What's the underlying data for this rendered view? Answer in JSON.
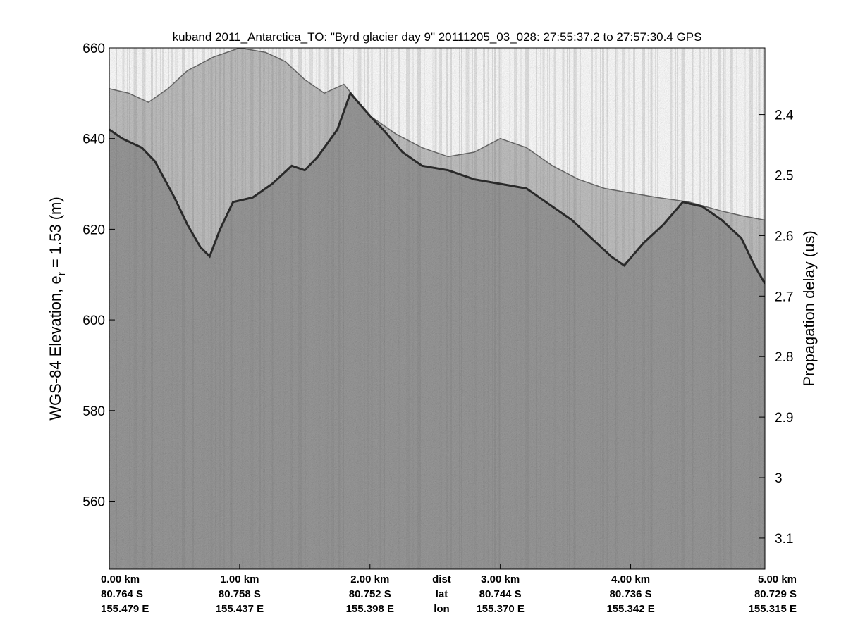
{
  "chart_data": {
    "type": "heatmap",
    "title": "kuband 2011_Antarctica_TO: \"Byrd glacier day 9\"  20111205_03_028: 27:55:37.2 to 27:57:30.4 GPS",
    "ylabel_left": "WGS-84 Elevation, e",
    "ylabel_left_sub": "r",
    "ylabel_left_suffix": " = 1.53 (m)",
    "ylabel_right": "Propagation delay (us)",
    "ylim_left": [
      545,
      660
    ],
    "yticks_left": [
      560,
      580,
      600,
      620,
      640,
      660
    ],
    "yticks_right": [
      2.4,
      2.5,
      2.6,
      2.7,
      2.8,
      2.9,
      3,
      3.1
    ],
    "xlim_km": [
      0,
      5.03
    ],
    "x_columns": [
      {
        "km": 0.0,
        "dist": "0.00 km",
        "lat": "80.764 S",
        "lon": "155.479 E"
      },
      {
        "km": 1.0,
        "dist": "1.00 km",
        "lat": "80.758 S",
        "lon": "155.437 E"
      },
      {
        "km": 2.0,
        "dist": "2.00 km",
        "lat": "80.752 S",
        "lon": "155.398 E"
      },
      {
        "km": 3.0,
        "dist": "3.00 km",
        "lat": "80.744 S",
        "lon": "155.370 E"
      },
      {
        "km": 4.0,
        "dist": "4.00 km",
        "lat": "80.736 S",
        "lon": "155.342 E"
      },
      {
        "km": 5.0,
        "dist": "5.00 km",
        "lat": "80.729 S",
        "lon": "155.315 E"
      }
    ],
    "row_labels": {
      "dist": "dist",
      "lat": "lat",
      "lon": "lon"
    },
    "surface_top": [
      [
        0,
        651
      ],
      [
        0.15,
        650
      ],
      [
        0.3,
        648
      ],
      [
        0.45,
        651
      ],
      [
        0.6,
        655
      ],
      [
        0.8,
        658
      ],
      [
        1.0,
        660
      ],
      [
        1.2,
        659
      ],
      [
        1.35,
        657
      ],
      [
        1.5,
        653
      ],
      [
        1.65,
        650
      ],
      [
        1.8,
        652
      ],
      [
        2.0,
        645
      ],
      [
        2.2,
        641
      ],
      [
        2.4,
        638
      ],
      [
        2.6,
        636
      ],
      [
        2.8,
        637
      ],
      [
        3.0,
        640
      ],
      [
        3.2,
        638
      ],
      [
        3.4,
        634
      ],
      [
        3.6,
        631
      ],
      [
        3.8,
        629
      ],
      [
        4.0,
        628
      ],
      [
        4.2,
        627
      ],
      [
        4.45,
        626
      ],
      [
        4.7,
        624
      ],
      [
        4.85,
        623
      ],
      [
        5.03,
        622
      ]
    ],
    "bed_layer": [
      [
        0,
        642
      ],
      [
        0.1,
        640
      ],
      [
        0.25,
        638
      ],
      [
        0.35,
        635
      ],
      [
        0.5,
        627
      ],
      [
        0.6,
        621
      ],
      [
        0.7,
        616
      ],
      [
        0.77,
        614
      ],
      [
        0.85,
        620
      ],
      [
        0.95,
        626
      ],
      [
        1.1,
        627
      ],
      [
        1.25,
        630
      ],
      [
        1.4,
        634
      ],
      [
        1.5,
        633
      ],
      [
        1.6,
        636
      ],
      [
        1.75,
        642
      ],
      [
        1.85,
        650
      ],
      [
        2.0,
        645
      ],
      [
        2.1,
        642
      ],
      [
        2.25,
        637
      ],
      [
        2.4,
        634
      ],
      [
        2.6,
        633
      ],
      [
        2.8,
        631
      ],
      [
        3.0,
        630
      ],
      [
        3.2,
        629
      ],
      [
        3.4,
        625
      ],
      [
        3.55,
        622
      ],
      [
        3.7,
        618
      ],
      [
        3.85,
        614
      ],
      [
        3.95,
        612
      ],
      [
        4.1,
        617
      ],
      [
        4.25,
        621
      ],
      [
        4.4,
        626
      ],
      [
        4.55,
        625
      ],
      [
        4.7,
        622
      ],
      [
        4.85,
        618
      ],
      [
        4.95,
        612
      ],
      [
        5.03,
        608
      ]
    ],
    "colormap": "grayscale",
    "grid": false,
    "colors": {
      "background": "#ffffff",
      "radargram_base": "#9a9a9a",
      "air": "#c2c2c2",
      "layer": "#2e2e2e"
    }
  }
}
